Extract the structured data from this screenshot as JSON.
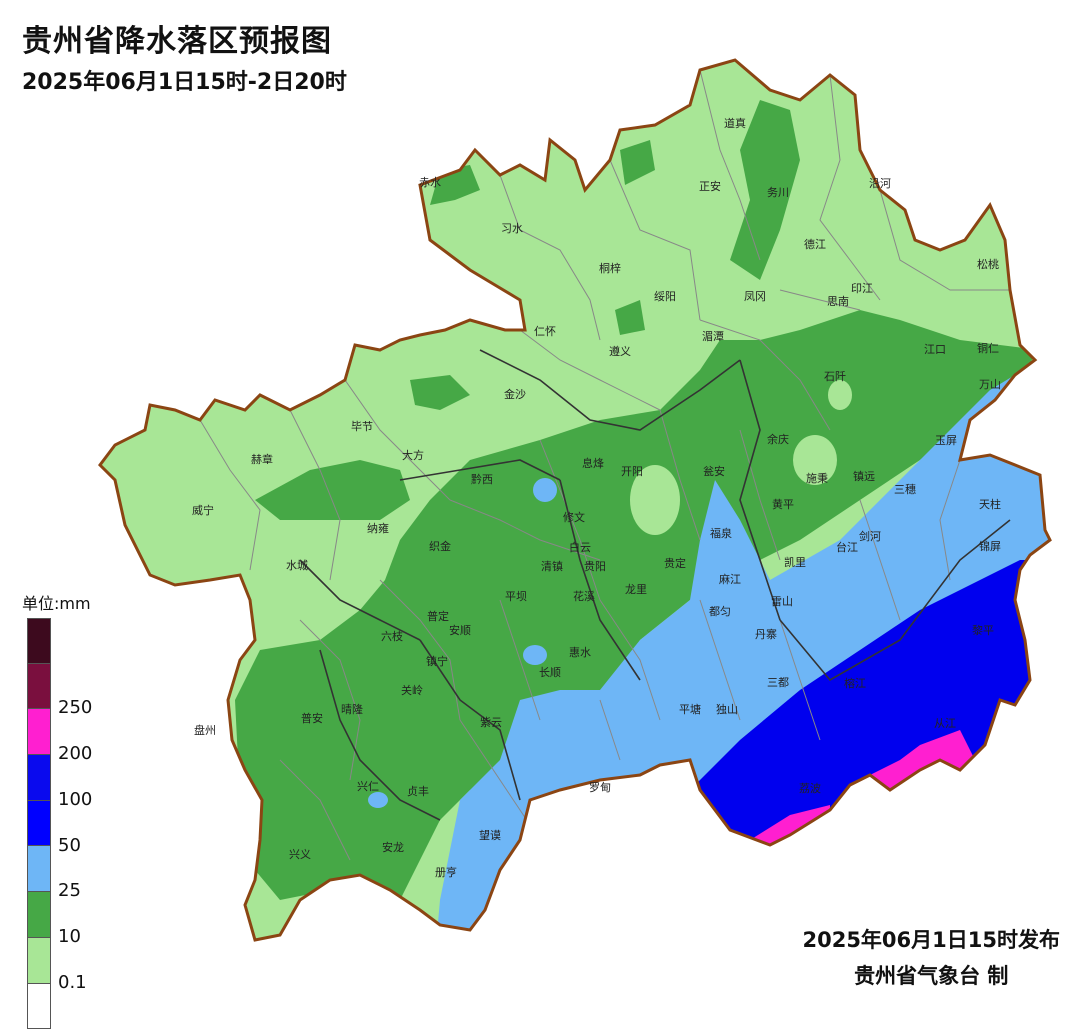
{
  "header": {
    "title": "贵州省降水落区预报图",
    "subtitle": "2025年06月1日15时-2日20时"
  },
  "legend": {
    "unit_label": "单位:mm",
    "bins": [
      {
        "color": "#3d0a1e",
        "label": ""
      },
      {
        "color": "#7a0f3e",
        "label": "250"
      },
      {
        "color": "#ff1fd0",
        "label": "200"
      },
      {
        "color": "#0a0aee",
        "label": "100"
      },
      {
        "color": "#0000ff",
        "label": "50"
      },
      {
        "color": "#6eb6f6",
        "label": "25"
      },
      {
        "color": "#46a846",
        "label": "10"
      },
      {
        "color": "#a8e696",
        "label": "0.1"
      },
      {
        "color": "#ffffff",
        "label": ""
      }
    ]
  },
  "footer": {
    "issued": "2025年06月1日15时发布",
    "issuer": "贵州省气象台 制"
  },
  "colors": {
    "light_green": "#a8e696",
    "green": "#46a846",
    "light_blue": "#6eb6f6",
    "blue": "#0000ee",
    "magenta": "#ff1fd0",
    "border": "#8b4513"
  },
  "cities": [
    "赤水",
    "习水",
    "道真",
    "正安",
    "务川",
    "沿河",
    "德江",
    "松桃",
    "桐梓",
    "绥阳",
    "凤冈",
    "印江",
    "思南",
    "仁怀",
    "湄潭",
    "遵义",
    "江口",
    "铜仁",
    "石阡",
    "万山",
    "金沙",
    "毕节",
    "赫章",
    "大方",
    "黔西",
    "息烽",
    "开阳",
    "余庆",
    "玉屏",
    "施秉",
    "镇远",
    "瓮安",
    "三穗",
    "天柱",
    "威宁",
    "纳雍",
    "织金",
    "修文",
    "黄平",
    "锦屏",
    "福泉",
    "台江",
    "剑河",
    "白云",
    "贵阳",
    "清镇",
    "龙里",
    "贵定",
    "凯里",
    "麻江",
    "水城",
    "普定",
    "平坝",
    "花溪",
    "六枝",
    "安顺",
    "都匀",
    "雷山",
    "丹寨",
    "黎平",
    "镇宁",
    "长顺",
    "惠水",
    "关岭",
    "晴隆",
    "普安",
    "盘州",
    "紫云",
    "平塘",
    "独山",
    "三都",
    "榕江",
    "从江",
    "兴仁",
    "贞丰",
    "罗甸",
    "荔波",
    "兴义",
    "安龙",
    "望谟",
    "册亨"
  ]
}
